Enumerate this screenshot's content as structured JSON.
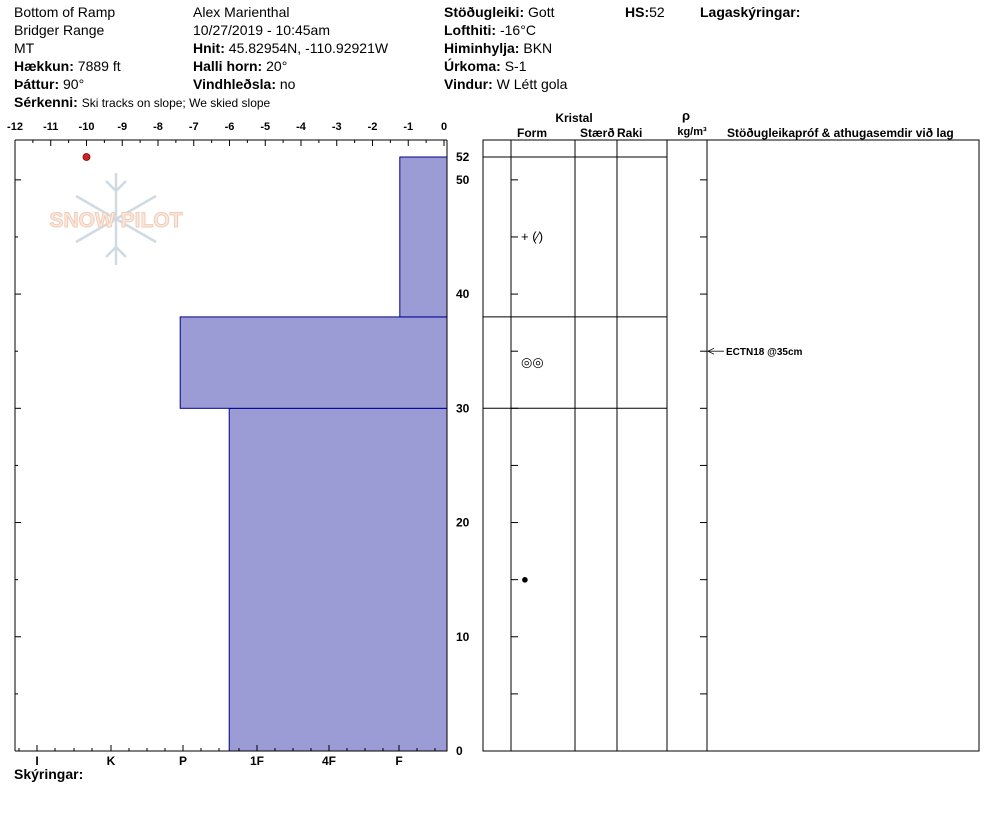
{
  "header": {
    "location": "Bottom of Ramp",
    "range": "Bridger Range",
    "state": "MT",
    "elevation_label": "Hækkun:",
    "elevation_value": "7889 ft",
    "aspect_label": "Þáttur:",
    "aspect_value": "90°",
    "observer": "Alex Marienthal",
    "datetime": "10/27/2019 - 10:45am",
    "coords_label": "Hnit:",
    "coords_value": "45.82954N, -110.92921W",
    "slope_label": "Halli horn:",
    "slope_value": "20°",
    "wind_loading_label": "Vindhleðsla:",
    "wind_loading_value": "no",
    "stability_label": "Stöðugleiki:",
    "stability_value": "Gott",
    "air_temp_label": "Lofthiti:",
    "air_temp_value": "-16°C",
    "sky_label": "Himinhylja:",
    "sky_value": "BKN",
    "precip_label": "Úrkoma:",
    "precip_value": "S-1",
    "wind_label": "Vindur:",
    "wind_value": "W Létt gola",
    "hs_label": "HS:",
    "hs_value": "52",
    "layer_comments_label": "Lagaskýringar:",
    "remarks_label": "Sérkenni:",
    "remarks_value": "Ski tracks on slope; We skied slope"
  },
  "columns": {
    "crystal": "Kristal",
    "form": "Form",
    "size": "Stærð",
    "moisture": "Raki",
    "rho": "ρ",
    "density_unit": "kg/m³",
    "tests": "Stöðugleikapróf & athugasemdir við lag"
  },
  "watermark": "SNOW PILOT",
  "legend_label": "Skýringar:",
  "chart_data": {
    "type": "bar",
    "temperature_axis": {
      "ticks": [
        "-12",
        "-11",
        "-10",
        "-9",
        "-8",
        "-7",
        "-6",
        "-5",
        "-4",
        "-3",
        "-2",
        "-1",
        "0"
      ],
      "range": [
        -12,
        0
      ]
    },
    "hardness_axis": {
      "ticks": [
        "I",
        "K",
        "P",
        "1F",
        "4F",
        "F"
      ]
    },
    "depth_axis": {
      "ticks": [
        "0",
        "10",
        "20",
        "30",
        "40",
        "50",
        "52"
      ],
      "range": [
        0,
        52
      ]
    },
    "hardness_profile": [
      {
        "bottom": 0,
        "top": 30,
        "hardness_index": 6.0
      },
      {
        "bottom": 30,
        "top": 38,
        "hardness_index": 7.35
      },
      {
        "bottom": 38,
        "top": 52,
        "hardness_index": 1.3
      }
    ],
    "temperature_points": [
      {
        "depth": 52,
        "temp": -10
      }
    ],
    "layer_boundaries": [
      30,
      38
    ],
    "grain_forms": [
      {
        "depth": 45,
        "symbol": "+ (⁄)"
      },
      {
        "depth": 34,
        "symbol": "◎◎"
      },
      {
        "depth": 15,
        "symbol": "●"
      }
    ],
    "stability_tests": [
      {
        "depth": 35,
        "label": "ECTN18 @35cm"
      }
    ],
    "colors": {
      "bar_fill": "#9b9bd6",
      "bar_stroke": "#00008b",
      "temp_point": "#cc2222"
    }
  }
}
